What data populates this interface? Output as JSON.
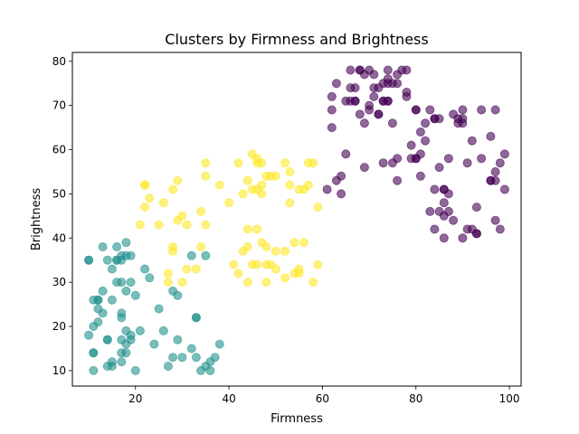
{
  "chart_data": {
    "type": "scatter",
    "title": "Clusters by Firmness and Brightness",
    "xlabel": "Firmness",
    "ylabel": "Brightness",
    "xlim": [
      6.5,
      102.5
    ],
    "ylim": [
      6.5,
      82
    ],
    "xticks": [
      20,
      40,
      60,
      80,
      100
    ],
    "yticks": [
      10,
      20,
      30,
      40,
      50,
      60,
      70,
      80
    ],
    "grid": false,
    "legend": "none",
    "marker_alpha": 0.6,
    "series": [
      {
        "color": "#21918c",
        "points": [
          [
            10,
            35
          ],
          [
            10,
            35
          ],
          [
            11,
            26
          ],
          [
            11,
            20
          ],
          [
            10,
            18
          ],
          [
            11,
            14
          ],
          [
            11,
            14
          ],
          [
            11,
            10
          ],
          [
            12,
            26
          ],
          [
            12,
            26
          ],
          [
            12,
            24
          ],
          [
            12,
            21
          ],
          [
            13,
            38
          ],
          [
            13,
            28
          ],
          [
            13,
            23
          ],
          [
            14,
            35
          ],
          [
            14,
            17
          ],
          [
            14,
            17
          ],
          [
            14,
            11
          ],
          [
            15,
            33
          ],
          [
            15,
            26
          ],
          [
            15,
            12
          ],
          [
            15,
            11
          ],
          [
            16,
            35
          ],
          [
            16,
            35
          ],
          [
            16,
            38
          ],
          [
            16,
            30
          ],
          [
            17,
            36
          ],
          [
            17,
            35
          ],
          [
            17,
            30
          ],
          [
            17,
            23
          ],
          [
            17,
            22
          ],
          [
            17,
            17
          ],
          [
            17,
            14
          ],
          [
            17,
            12
          ],
          [
            18,
            39
          ],
          [
            18,
            36
          ],
          [
            18,
            28
          ],
          [
            18,
            19
          ],
          [
            18,
            16
          ],
          [
            18,
            14
          ],
          [
            19,
            36
          ],
          [
            19,
            30
          ],
          [
            19,
            18
          ],
          [
            19,
            17
          ],
          [
            20,
            27
          ],
          [
            20,
            10
          ],
          [
            21,
            19
          ],
          [
            22,
            33
          ],
          [
            23,
            31
          ],
          [
            24,
            16
          ],
          [
            25,
            24
          ],
          [
            26,
            19
          ],
          [
            27,
            11
          ],
          [
            28,
            28
          ],
          [
            28,
            13
          ],
          [
            29,
            27
          ],
          [
            29,
            17
          ],
          [
            30,
            13
          ],
          [
            32,
            15
          ],
          [
            32,
            36
          ],
          [
            33,
            22
          ],
          [
            33,
            22
          ],
          [
            33,
            13
          ],
          [
            34,
            10
          ],
          [
            35,
            36
          ],
          [
            35,
            11
          ],
          [
            36,
            12
          ],
          [
            36,
            10
          ],
          [
            37,
            13
          ],
          [
            38,
            16
          ]
        ]
      },
      {
        "color": "#fde725",
        "points": [
          [
            21,
            43
          ],
          [
            22,
            52
          ],
          [
            22,
            52
          ],
          [
            22,
            47
          ],
          [
            23,
            49
          ],
          [
            25,
            43
          ],
          [
            26,
            48
          ],
          [
            27,
            32
          ],
          [
            27,
            30
          ],
          [
            28,
            38
          ],
          [
            28,
            37
          ],
          [
            28,
            51
          ],
          [
            29,
            53
          ],
          [
            29,
            44
          ],
          [
            30,
            45
          ],
          [
            30,
            30
          ],
          [
            31,
            33
          ],
          [
            31,
            43
          ],
          [
            33,
            33
          ],
          [
            34,
            38
          ],
          [
            34,
            46
          ],
          [
            35,
            43
          ],
          [
            35,
            54
          ],
          [
            35,
            57
          ],
          [
            38,
            52
          ],
          [
            40,
            48
          ],
          [
            41,
            34
          ],
          [
            42,
            32
          ],
          [
            42,
            57
          ],
          [
            43,
            37
          ],
          [
            43,
            50
          ],
          [
            44,
            53
          ],
          [
            44,
            42
          ],
          [
            44,
            38
          ],
          [
            44,
            30
          ],
          [
            45,
            34
          ],
          [
            45,
            51
          ],
          [
            45,
            59
          ],
          [
            46,
            58
          ],
          [
            46,
            57
          ],
          [
            46,
            42
          ],
          [
            46,
            34
          ],
          [
            46,
            51
          ],
          [
            47,
            57
          ],
          [
            47,
            52
          ],
          [
            47,
            50
          ],
          [
            47,
            39
          ],
          [
            48,
            38
          ],
          [
            48,
            30
          ],
          [
            48,
            34
          ],
          [
            48,
            54
          ],
          [
            49,
            34
          ],
          [
            49,
            54
          ],
          [
            50,
            33
          ],
          [
            50,
            54
          ],
          [
            50,
            37
          ],
          [
            52,
            37
          ],
          [
            52,
            31
          ],
          [
            52,
            57
          ],
          [
            53,
            55
          ],
          [
            53,
            52
          ],
          [
            53,
            48
          ],
          [
            54,
            32
          ],
          [
            54,
            39
          ],
          [
            55,
            51
          ],
          [
            55,
            32
          ],
          [
            55,
            33
          ],
          [
            56,
            51
          ],
          [
            56,
            39
          ],
          [
            57,
            57
          ],
          [
            57,
            52
          ],
          [
            58,
            30
          ],
          [
            58,
            57
          ],
          [
            59,
            47
          ],
          [
            59,
            34
          ]
        ]
      },
      {
        "color": "#440154",
        "points": [
          [
            61,
            51
          ],
          [
            62,
            69
          ],
          [
            62,
            72
          ],
          [
            62,
            65
          ],
          [
            63,
            75
          ],
          [
            63,
            53
          ],
          [
            64,
            54
          ],
          [
            64,
            50
          ],
          [
            65,
            59
          ],
          [
            65,
            71
          ],
          [
            66,
            74
          ],
          [
            66,
            78
          ],
          [
            66,
            71
          ],
          [
            67,
            74
          ],
          [
            67,
            71
          ],
          [
            67,
            71
          ],
          [
            68,
            78
          ],
          [
            68,
            78
          ],
          [
            68,
            68
          ],
          [
            69,
            56
          ],
          [
            69,
            66
          ],
          [
            69,
            77
          ],
          [
            70,
            78
          ],
          [
            70,
            70
          ],
          [
            70,
            69
          ],
          [
            71,
            77
          ],
          [
            71,
            74
          ],
          [
            71,
            72
          ],
          [
            72,
            68
          ],
          [
            72,
            74
          ],
          [
            72,
            68
          ],
          [
            73,
            71
          ],
          [
            73,
            71
          ],
          [
            73,
            75
          ],
          [
            73,
            57
          ],
          [
            74,
            76
          ],
          [
            74,
            78
          ],
          [
            74,
            75
          ],
          [
            74,
            71
          ],
          [
            74,
            71
          ],
          [
            75,
            75
          ],
          [
            75,
            66
          ],
          [
            75,
            57
          ],
          [
            76,
            58
          ],
          [
            76,
            75
          ],
          [
            76,
            77
          ],
          [
            76,
            53
          ],
          [
            77,
            78
          ],
          [
            78,
            78
          ],
          [
            78,
            72
          ],
          [
            78,
            73
          ],
          [
            79,
            58
          ],
          [
            79,
            61
          ],
          [
            80,
            69
          ],
          [
            80,
            69
          ],
          [
            80,
            58
          ],
          [
            80,
            58
          ],
          [
            81,
            59
          ],
          [
            81,
            64
          ],
          [
            81,
            54
          ],
          [
            82,
            66
          ],
          [
            82,
            62
          ],
          [
            83,
            69
          ],
          [
            83,
            46
          ],
          [
            84,
            67
          ],
          [
            84,
            67
          ],
          [
            84,
            42
          ],
          [
            84,
            51
          ],
          [
            85,
            67
          ],
          [
            85,
            46
          ],
          [
            85,
            56
          ],
          [
            86,
            40
          ],
          [
            86,
            51
          ],
          [
            86,
            51
          ],
          [
            86,
            48
          ],
          [
            86,
            45
          ],
          [
            87,
            46
          ],
          [
            87,
            50
          ],
          [
            87,
            58
          ],
          [
            88,
            68
          ],
          [
            88,
            44
          ],
          [
            89,
            66
          ],
          [
            89,
            67
          ],
          [
            90,
            69
          ],
          [
            90,
            67
          ],
          [
            90,
            40
          ],
          [
            90,
            66
          ],
          [
            91,
            57
          ],
          [
            91,
            42
          ],
          [
            92,
            42
          ],
          [
            92,
            62
          ],
          [
            93,
            41
          ],
          [
            93,
            41
          ],
          [
            93,
            47
          ],
          [
            94,
            69
          ],
          [
            94,
            58
          ],
          [
            96,
            53
          ],
          [
            96,
            53
          ],
          [
            96,
            63
          ],
          [
            97,
            53
          ],
          [
            97,
            69
          ],
          [
            97,
            44
          ],
          [
            97,
            55
          ],
          [
            98,
            42
          ],
          [
            98,
            57
          ],
          [
            99,
            51
          ],
          [
            99,
            59
          ]
        ]
      }
    ]
  }
}
